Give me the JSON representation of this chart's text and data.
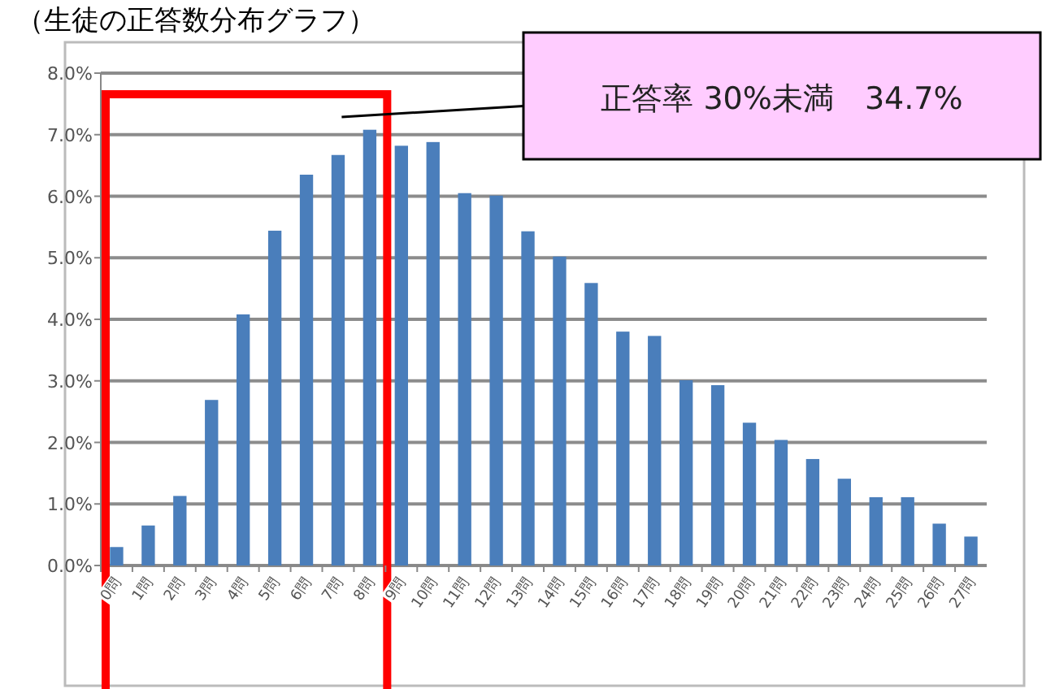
{
  "chart_data": {
    "type": "bar",
    "title": "（生徒の正答数分布グラフ）",
    "categories": [
      "0問",
      "1問",
      "2問",
      "3問",
      "4問",
      "5問",
      "6問",
      "7問",
      "8問",
      "9問",
      "10問",
      "11問",
      "12問",
      "13問",
      "14問",
      "15問",
      "16問",
      "17問",
      "18問",
      "19問",
      "20問",
      "21問",
      "22問",
      "23問",
      "24問",
      "25問",
      "26問",
      "27問"
    ],
    "series": [
      {
        "color": "#4a7ebb",
        "values": [
          0.3,
          0.65,
          1.13,
          2.69,
          4.08,
          5.44,
          6.35,
          6.67,
          7.08,
          6.82,
          6.88,
          6.05,
          6.01,
          5.43,
          5.02,
          4.59,
          3.8,
          3.73,
          3.01,
          2.93,
          2.32,
          2.04,
          1.73,
          1.41,
          1.11,
          1.11,
          0.68,
          0.47
        ]
      }
    ],
    "ylim": [
      0,
      8
    ],
    "yticks": [
      {
        "value": 0,
        "label": "0.0%"
      },
      {
        "value": 1,
        "label": "1.0%"
      },
      {
        "value": 2,
        "label": "2.0%"
      },
      {
        "value": 3,
        "label": "3.0%"
      },
      {
        "value": 4,
        "label": "4.0%"
      },
      {
        "value": 5,
        "label": "5.0%"
      },
      {
        "value": 6,
        "label": "6.0%"
      },
      {
        "value": 7,
        "label": "7.0%"
      },
      {
        "value": 8,
        "label": "8.0%"
      }
    ],
    "grid": "y",
    "annotations": [
      "正答率 30%未満　34.7%"
    ]
  }
}
